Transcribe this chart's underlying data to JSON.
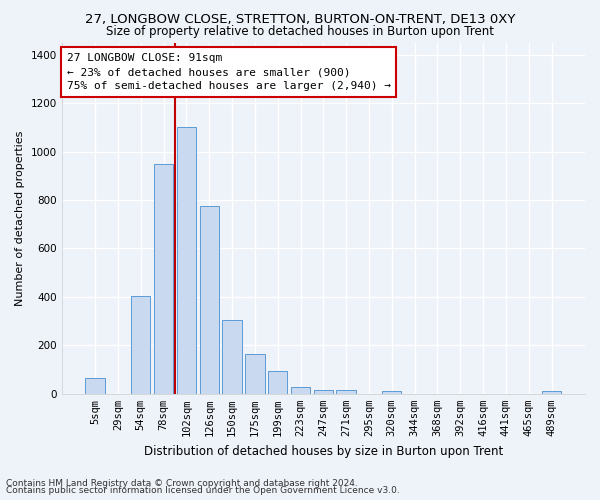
{
  "title1": "27, LONGBOW CLOSE, STRETTON, BURTON-ON-TRENT, DE13 0XY",
  "title2": "Size of property relative to detached houses in Burton upon Trent",
  "xlabel": "Distribution of detached houses by size in Burton upon Trent",
  "ylabel": "Number of detached properties",
  "footnote1": "Contains HM Land Registry data © Crown copyright and database right 2024.",
  "footnote2": "Contains public sector information licensed under the Open Government Licence v3.0.",
  "categories": [
    "5sqm",
    "29sqm",
    "54sqm",
    "78sqm",
    "102sqm",
    "126sqm",
    "150sqm",
    "175sqm",
    "199sqm",
    "223sqm",
    "247sqm",
    "271sqm",
    "295sqm",
    "320sqm",
    "344sqm",
    "368sqm",
    "392sqm",
    "416sqm",
    "441sqm",
    "465sqm",
    "489sqm"
  ],
  "values": [
    65,
    0,
    405,
    950,
    1100,
    775,
    305,
    165,
    95,
    30,
    15,
    15,
    0,
    10,
    0,
    0,
    0,
    0,
    0,
    0,
    10
  ],
  "bar_color": "#c9d9f0",
  "bar_edge_color": "#5b9bd5",
  "vline_x_index": 3.5,
  "vline_color": "#c00000",
  "annotation_text": "27 LONGBOW CLOSE: 91sqm\n← 23% of detached houses are smaller (900)\n75% of semi-detached houses are larger (2,940) →",
  "ylim": [
    0,
    1450
  ],
  "yticks": [
    0,
    200,
    400,
    600,
    800,
    1000,
    1200,
    1400
  ],
  "background_color": "#eef2f9",
  "grid_color": "#ffffff",
  "title1_fontsize": 9.5,
  "title2_fontsize": 8.5,
  "xlabel_fontsize": 8.5,
  "ylabel_fontsize": 8,
  "tick_fontsize": 7.5,
  "annot_fontsize": 8,
  "footnote_fontsize": 6.5
}
